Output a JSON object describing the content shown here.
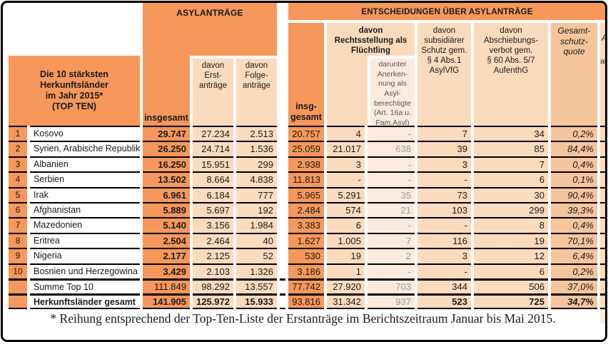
{
  "colors": {
    "orange": "#F6975B",
    "light_peach": "#FBDBBE",
    "lighter_peach": "#FCEBDC",
    "medium_peach": "#F6C59C",
    "value_gray": "#9A9A9A",
    "line_black": "#000000"
  },
  "header": {
    "country_box": "Die 10 stärksten Herkunftsländer\nim Jahr 2015*\n(TOP TEN)",
    "asyl_title": "ASYLANTRÄGE",
    "asyl_insgesamt": "insgesamt",
    "asyl_erst": "davon\nErst-\nanträge",
    "asyl_folge": "davon\nFolge-\nanträge",
    "ent_title": "ENTSCHEIDUNGEN ÜBER ASYLANTRÄGE",
    "ent_insgesamt": "insg-\ngesamt",
    "ent_recht": "davon\nRechtsstellung als\nFlüchtling",
    "ent_darunter": "darunter\nAnerken-\nnung als Asyl-\nberechtigte\n(Art. 16a u.\nFam.Asyl)",
    "ent_subsidiaer": "davon\nsubsidiärer\nSchutz gem.\n§ 4 Abs.1 AsylVfG",
    "ent_abschiebung": "davon\nAbschiebungs-\nverbot gem.\n§ 60 Abs. 5/7\nAufenthG",
    "ent_quote": "Gesamt-\nschutz-\nquote",
    "clipped_right_column_fragments": [
      "A",
      "ab"
    ]
  },
  "rows": [
    {
      "type": "rank",
      "num": "1",
      "country": "Kosovo",
      "vals": [
        "29.747",
        "27.234",
        "2.513",
        "20.757",
        "4",
        "-",
        "7",
        "34",
        "0,2%"
      ]
    },
    {
      "type": "rank",
      "num": "2",
      "country": "Syrien, Arabische Republik",
      "vals": [
        "26.250",
        "24.714",
        "1.536",
        "25.059",
        "21.017",
        "638",
        "39",
        "85",
        "84,4%"
      ]
    },
    {
      "type": "rank",
      "num": "3",
      "country": "Albanien",
      "vals": [
        "16.250",
        "15.951",
        "299",
        "2.938",
        "3",
        "-",
        "3",
        "7",
        "0,4%"
      ]
    },
    {
      "type": "rank",
      "num": "4",
      "country": "Serbien",
      "vals": [
        "13.502",
        "8.664",
        "4.838",
        "11.813",
        "-",
        "-",
        "-",
        "6",
        "0,1%"
      ]
    },
    {
      "type": "rank",
      "num": "5",
      "country": "Irak",
      "vals": [
        "6.961",
        "6.184",
        "777",
        "5.965",
        "5.291",
        "35",
        "73",
        "30",
        "90,4%"
      ]
    },
    {
      "type": "rank",
      "num": "6",
      "country": "Afghanistan",
      "vals": [
        "5.889",
        "5.697",
        "192",
        "2.484",
        "574",
        "21",
        "103",
        "299",
        "39,3%"
      ]
    },
    {
      "type": "rank",
      "num": "7",
      "country": "Mazedonien",
      "vals": [
        "5.140",
        "3.156",
        "1.984",
        "3.383",
        "6",
        "-",
        "-",
        "8",
        "0,4%"
      ]
    },
    {
      "type": "rank",
      "num": "8",
      "country": "Eritrea",
      "vals": [
        "2.504",
        "2.464",
        "40",
        "1.627",
        "1.005",
        "7",
        "116",
        "19",
        "70,1%"
      ]
    },
    {
      "type": "rank",
      "num": "9",
      "country": "Nigeria",
      "vals": [
        "2.177",
        "2.125",
        "52",
        "530",
        "19",
        "2",
        "3",
        "12",
        "6,4%"
      ]
    },
    {
      "type": "rank",
      "num": "10",
      "country": "Bosnien und Herzegowina",
      "vals": [
        "3.429",
        "2.103",
        "1.326",
        "3.186",
        "1",
        "-",
        "-",
        "6",
        "0,2%"
      ]
    },
    {
      "type": "sum",
      "num": "",
      "country": "Summe Top 10",
      "vals": [
        "111.849",
        "98.292",
        "13.557",
        "77.742",
        "27.920",
        "703",
        "344",
        "506",
        "37,0%"
      ]
    },
    {
      "type": "total",
      "num": "",
      "country": "Herkunftsländer gesamt",
      "vals": [
        "141.905",
        "125.972",
        "15.933",
        "93.816",
        "31.342",
        "937",
        "523",
        "725",
        "34,7%"
      ]
    }
  ],
  "footnote": "* Reihung entsprechend der Top-Ten-Liste der Erstanträge im Berichtszeitraum Januar bis Mai 2015."
}
